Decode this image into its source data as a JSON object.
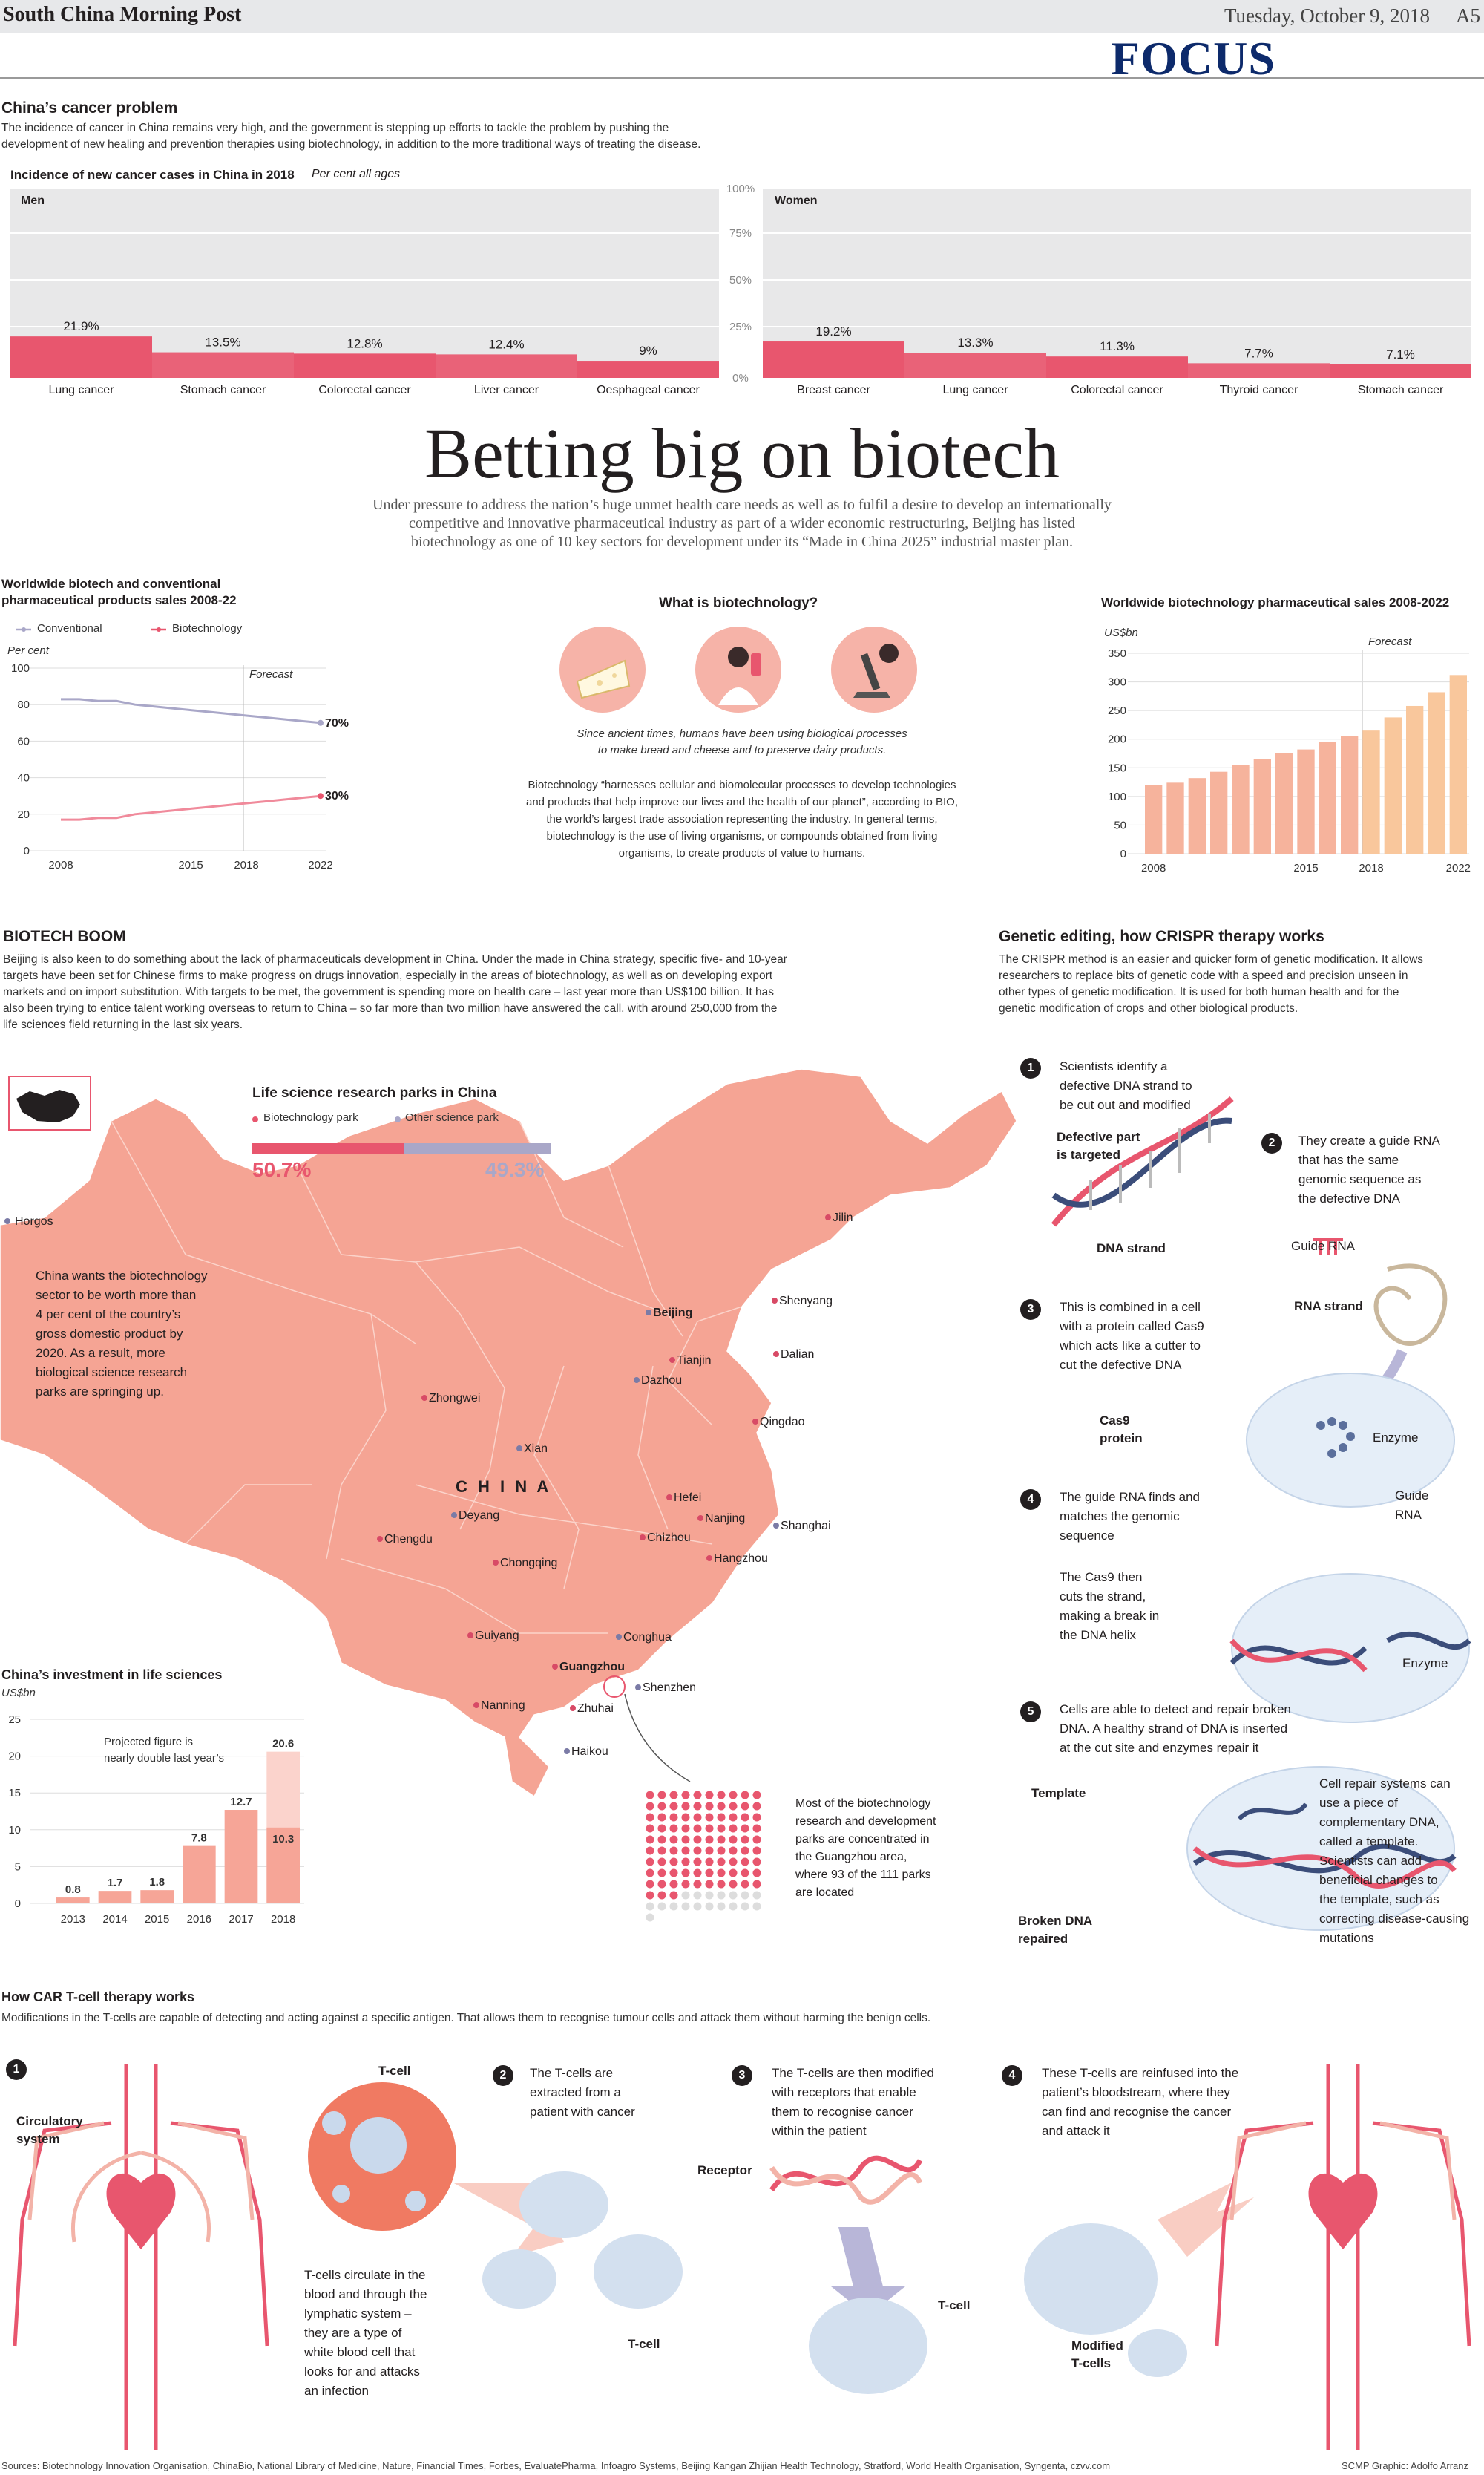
{
  "masthead": {
    "paper": "South China Morning Post",
    "date": "Tuesday, October 9, 2018",
    "page": "A5",
    "section": "FOCUS"
  },
  "cancer": {
    "title": "China’s cancer problem",
    "intro1": "The incidence of cancer in China remains very high, and the government is stepping up efforts to tackle the problem by pushing the",
    "intro2": "development of new healing and prevention therapies using biotechnology, in addition to the more traditional ways of treating the disease.",
    "chart_title": "Incidence of new cancer cases in China in 2018",
    "chart_note": "Per cent all ages"
  },
  "headline": {
    "title": "Betting big on biotech",
    "deck1": "Under pressure to address the nation’s huge unmet health care needs as well as to fulfil a desire  to develop an internationally",
    "deck2": "competitive and innovative pharmaceutical industry as part of a wider economic restructuring, Beijing has listed",
    "deck3": "biotechnology as one of 10 key sectors for development under its “Made in China 2025” industrial master plan."
  },
  "line_chart": {
    "title1": "Worldwide biotech and conventional",
    "title2": "pharmaceutical products sales 2008-22",
    "legend_conv": "Conventional",
    "legend_bio": "Biotechnology",
    "unit": "Per cent",
    "forecast": "Forecast",
    "end_conv": "70%",
    "end_bio": "30%"
  },
  "what_is": {
    "title": "What is biotechnology?",
    "caption1": "Since ancient times, humans have been using biological processes",
    "caption2": "to make bread and cheese and to preserve dairy products.",
    "p1": "Biotechnology “harnesses cellular and biomolecular processes to develop technologies",
    "p2": "and products that help improve our lives and the health of our planet”, according to BIO,",
    "p3": "the world’s largest trade association representing the industry. In general terms,",
    "p4": "biotechnology is the use of living organisms, or compounds obtained from living",
    "p5": "organisms, to create products of value to humans."
  },
  "sales_chart": {
    "title": "Worldwide biotechnology pharmaceutical sales 2008-2022",
    "unit": "US$bn",
    "forecast": "Forecast"
  },
  "boom": {
    "title": "BIOTECH BOOM",
    "l1": "Beijing is also keen to do something about the lack of pharmaceuticals development in China. Under the made in China strategy, specific five- and 10-year",
    "l2": "targets have been set for Chinese firms to make progress on drugs innovation, especially in the areas of biotechnology, as well as on developing export",
    "l3": "markets and on import substitution. With targets to be met, the government is spending more on health care – last year more than US$100 billion. It has",
    "l4": "also been trying to entice talent working overseas to return to China – so far more than two million have answered the call, with around 250,000 from the",
    "l5": "life sciences field returning in the last six years."
  },
  "map": {
    "title": "Life science research parks in China",
    "legend_bio": "Biotechnology park",
    "legend_other": "Other science park",
    "pct_bio": "50.7%",
    "pct_other": "49.3%",
    "country": "C H I N A",
    "note1": "China wants the biotechnology",
    "note2": "sector to be worth more than",
    "note3": "4 per cent of the country’s",
    "note4": "gross domestic product by",
    "note5": "2020. As a result, more",
    "note6": "biological science research",
    "note7": "parks are springing up.",
    "cities": [
      "Horgos",
      "Jilin",
      "Shenyang",
      "Beijing",
      "Tianjin",
      "Dalian",
      "Dazhou",
      "Qingdao",
      "Zhongwei",
      "Xian",
      "Hefei",
      "Nanjing",
      "Shanghai",
      "Chizhou",
      "Hangzhou",
      "Deyang",
      "Chengdu",
      "Chongqing",
      "Conghua",
      "Guiyang",
      "Guangzhou",
      "Shenzhen",
      "Nanning",
      "Zhuhai",
      "Haikou"
    ],
    "dots1": "Most of the biotechnology",
    "dots2": "research and development",
    "dots3": "parks are concentrated in",
    "dots4": "the Guangzhou area,",
    "dots5": "where 93 of the 111 parks",
    "dots6": "are located"
  },
  "invest": {
    "title": "China’s investment in life sciences",
    "unit": "US$bn",
    "note1": "Projected figure is",
    "note2": "nearly double last year’s"
  },
  "crispr": {
    "title": "Genetic editing, how CRISPR therapy works",
    "i1": "The CRISPR method is an easier and quicker form of genetic modification. It allows",
    "i2": "researchers to replace bits of genetic code with a speed and precision unseen in",
    "i3": "other types of genetic modification. It is used for both human health and for the",
    "i4": "genetic modification of crops and other biological products.",
    "s1a": "Scientists identify a",
    "s1b": "defective DNA strand to",
    "s1c": "be cut out and modified",
    "defect1": "Defective part",
    "defect2": "is targeted",
    "dna_strand": "DNA strand",
    "s2a": "They create a guide RNA",
    "s2b": "that has the same",
    "s2c": "genomic sequence as",
    "s2d": "the defective DNA",
    "guide_rna": "Guide RNA",
    "rna_strand": "RNA strand",
    "s3a": "This is combined in a cell",
    "s3b": "with a protein called Cas9",
    "s3c": "which acts like a cutter to",
    "s3d": "cut the defective DNA",
    "cas9a": "Cas9",
    "cas9b": "protein",
    "enzyme": "Enzyme",
    "s4a": "The guide RNA finds and",
    "s4b": "matches the genomic",
    "s4c": "sequence",
    "guide1": "Guide",
    "guide2": "RNA",
    "cut1": "The Cas9 then",
    "cut2": "cuts the strand,",
    "cut3": "making a break in",
    "cut4": "the DNA helix",
    "enzyme2": "Enzyme",
    "s5a": "Cells are able to detect and repair broken",
    "s5b": "DNA. A healthy strand of DNA is inserted",
    "s5c": "at the cut site and enzymes repair it",
    "template": "Template",
    "broken1": "Broken DNA",
    "broken2": "repaired",
    "r1": "Cell repair systems can",
    "r2": "use a piece of",
    "r3": "complementary DNA,",
    "r4": "called a template.",
    "r5": "Scientists can add",
    "r6": "beneficial changes to",
    "r7": "the template, such as",
    "r8": "correcting disease-causing",
    "r9": "mutations"
  },
  "car": {
    "title": "How CAR T-cell therapy works",
    "intro": "Modifications in the T-cells are capable of detecting and acting against a specific antigen. That allows them to recognise tumour cells and attack them without harming the benign cells.",
    "circ1": "Circulatory",
    "circ2": "system",
    "tcell": "T-cell",
    "t1": "T-cells circulate in the",
    "t2": "blood and through the",
    "t3": "lymphatic system –",
    "t4": "they are a type of",
    "t5": "white blood cell that",
    "t6": "looks for and attacks",
    "t7": "an infection",
    "s2a": "The T-cells are",
    "s2b": "extracted from a",
    "s2c": "patient with cancer",
    "tcell2": "T-cell",
    "s3a": "The T-cells are then modified",
    "s3b": "with receptors that enable",
    "s3c": "them to recognise cancer",
    "s3d": "within the patient",
    "receptor": "Receptor",
    "tcell3": "T-cell",
    "s4a": "These T-cells are reinfused into the",
    "s4b": "patient’s bloodstream, where they",
    "s4c": "can find and recognise the cancer",
    "s4d": "and attack it",
    "mod1": "Modified",
    "mod2": "T-cells"
  },
  "footer": {
    "sources": "Sources: Biotechnology Innovation Organisation, ChinaBio, National Library of Medicine, Nature, Financial Times, Forbes, EvaluatePharma, Infoagro Systems, Beijing Kangan Zhijian Health Technology, Stratford, World Health Organisation, Syngenta,  czvv.com",
    "credit": "SCMP Graphic: Adolfo Arranz"
  },
  "colors": {
    "accent": "#e8566e",
    "salmon": "#f4a597",
    "lilac": "#a9a7c8",
    "navy": "#0d2a6b",
    "bar_orange": "#f6b39c",
    "bar_forecast": "#f9c79c"
  },
  "chart_data": [
    {
      "type": "bar",
      "title": "Men",
      "categories": [
        "Lung cancer",
        "Stomach cancer",
        "Colorectal cancer",
        "Liver cancer",
        "Oesphageal cancer"
      ],
      "values": [
        21.9,
        13.5,
        12.8,
        12.4,
        9
      ],
      "labels": [
        "21.9%",
        "13.5%",
        "12.8%",
        "12.4%",
        "9%"
      ],
      "ylim": [
        0,
        100
      ]
    },
    {
      "type": "bar",
      "title": "Women",
      "categories": [
        "Breast cancer",
        "Lung cancer",
        "Colorectal cancer",
        "Thyroid cancer",
        "Stomach cancer"
      ],
      "values": [
        19.2,
        13.3,
        11.3,
        7.7,
        7.1
      ],
      "labels": [
        "19.2%",
        "13.3%",
        "11.3%",
        "7.7%",
        "7.1%"
      ],
      "ylim": [
        0,
        100
      ]
    },
    {
      "type": "line",
      "title": "Worldwide biotech and conventional pharmaceutical products sales 2008-22",
      "ylabel": "Per cent",
      "ylim": [
        0,
        100
      ],
      "yticks": [
        "100",
        "80",
        "60",
        "40",
        "20",
        "0"
      ],
      "xticks": [
        "2008",
        "2015",
        "2018",
        "2022"
      ],
      "x": [
        2008,
        2009,
        2010,
        2011,
        2012,
        2013,
        2014,
        2015,
        2016,
        2017,
        2018,
        2019,
        2020,
        2021,
        2022
      ],
      "series": [
        {
          "name": "Conventional",
          "values": [
            83,
            83,
            82,
            82,
            80,
            79,
            78,
            77,
            76,
            75,
            74,
            73,
            72,
            71,
            70
          ]
        },
        {
          "name": "Biotechnology",
          "values": [
            17,
            17,
            18,
            18,
            20,
            21,
            22,
            23,
            24,
            25,
            26,
            27,
            28,
            29,
            30
          ]
        }
      ]
    },
    {
      "type": "bar",
      "title": "Worldwide biotechnology pharmaceutical sales 2008-2022",
      "ylabel": "US$bn",
      "ylim": [
        0,
        350
      ],
      "yticks": [
        "350",
        "300",
        "250",
        "200",
        "150",
        "100",
        "50",
        "0"
      ],
      "xticks": [
        "2008",
        "2015",
        "2018",
        "2022"
      ],
      "x": [
        2008,
        2009,
        2010,
        2011,
        2012,
        2013,
        2014,
        2015,
        2016,
        2017,
        2018,
        2019,
        2020,
        2021,
        2022
      ],
      "values": [
        120,
        124,
        132,
        143,
        155,
        165,
        175,
        182,
        195,
        205,
        215,
        238,
        258,
        282,
        312
      ],
      "forecast_from": 2018
    },
    {
      "type": "bar",
      "title": "China’s investment in life sciences",
      "ylabel": "US$bn",
      "ylim": [
        0,
        25
      ],
      "yticks": [
        "25",
        "20",
        "15",
        "10",
        "5",
        "0"
      ],
      "categories": [
        "2013",
        "2014",
        "2015",
        "2016",
        "2017",
        "2018"
      ],
      "values": [
        0.8,
        1.7,
        1.8,
        7.8,
        12.7,
        20.6
      ],
      "labels": [
        "0.8",
        "1.7",
        "1.8",
        "7.8",
        "12.7",
        "20.6"
      ],
      "inner_value": 10.3,
      "inner_label": "10.3"
    },
    {
      "type": "pie",
      "title": "Life science research parks in China",
      "categories": [
        "Biotechnology park",
        "Other science park"
      ],
      "values": [
        50.7,
        49.3
      ]
    },
    {
      "type": "table",
      "title": "Guangzhou parks",
      "total_parks": 111,
      "guangzhou_parks": 93
    }
  ]
}
